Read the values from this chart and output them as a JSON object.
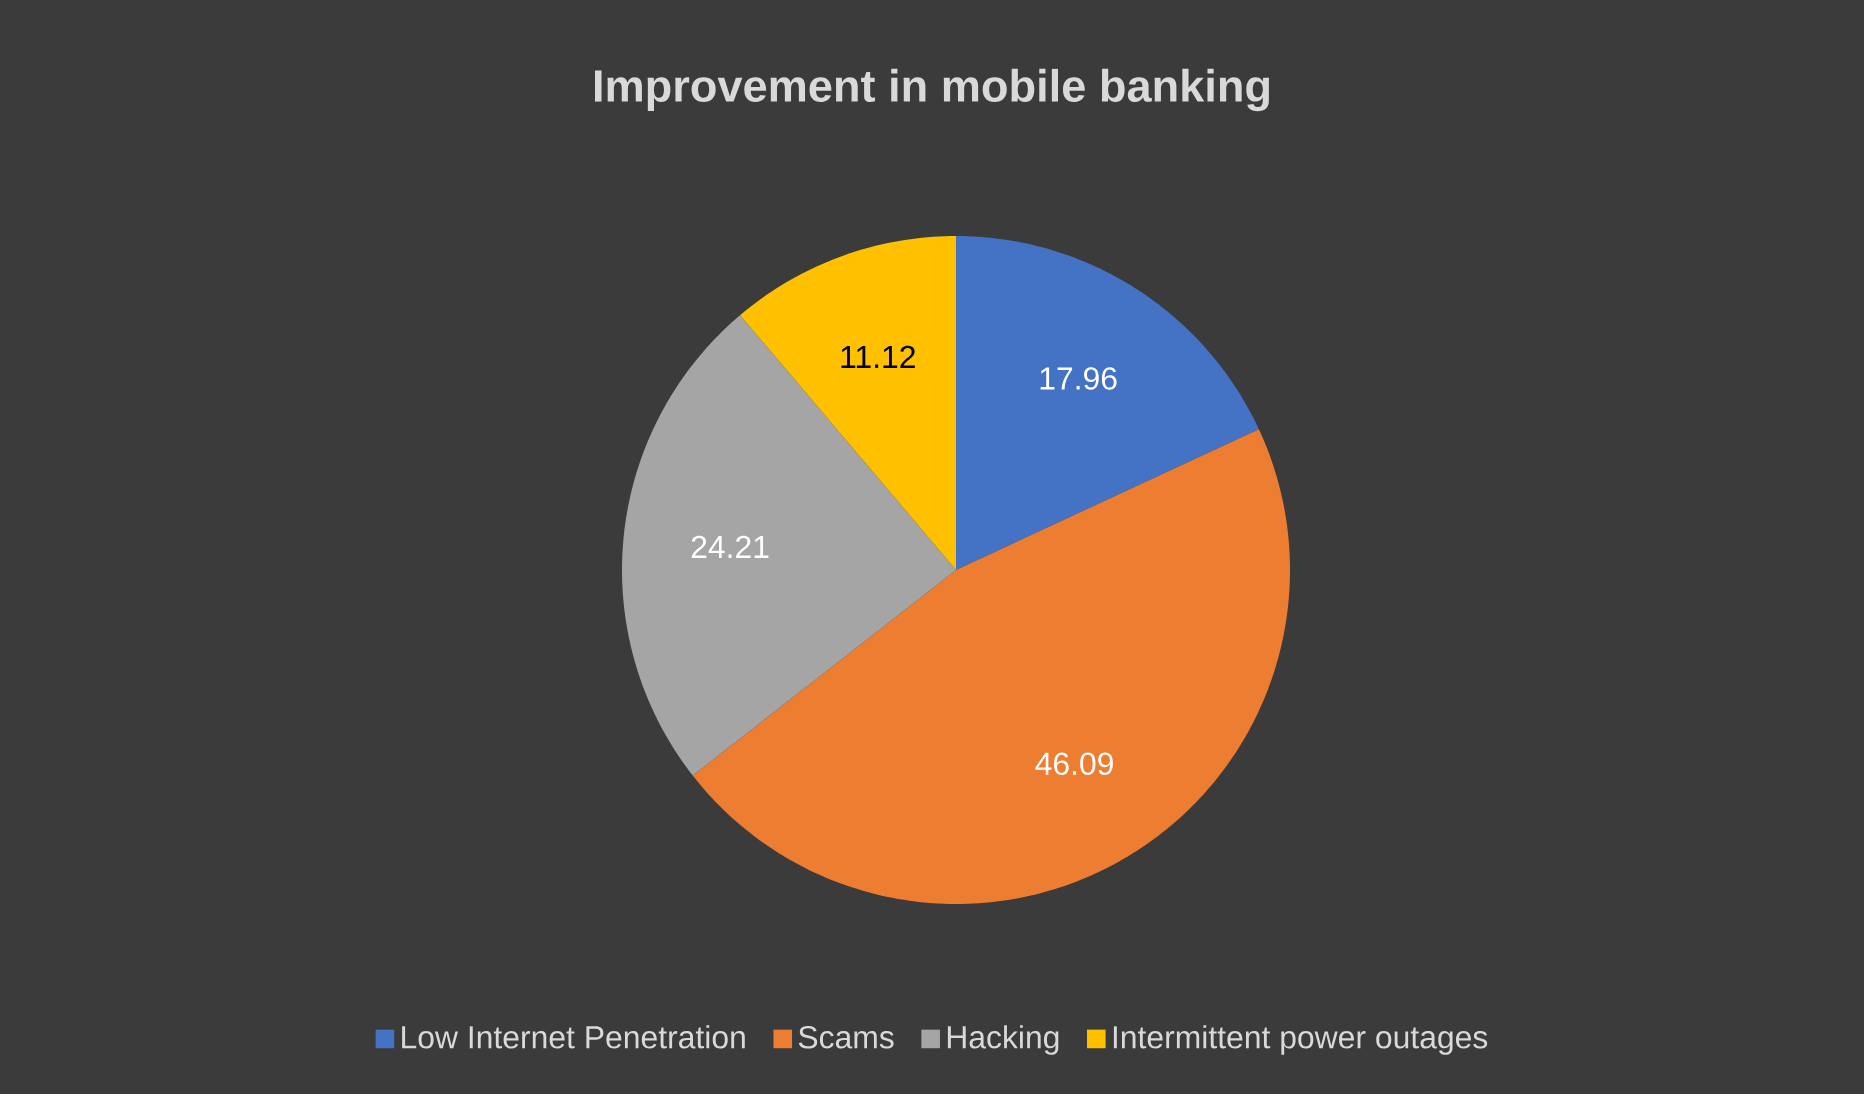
{
  "chart_data": {
    "type": "pie",
    "title": "Improvement in mobile banking",
    "categories": [
      "Low Internet Penetration",
      "Scams",
      "Hacking",
      "Intermittent power outages"
    ],
    "values": [
      17.96,
      46.09,
      24.21,
      11.12
    ],
    "colors": [
      "#4472c4",
      "#ed7d31",
      "#a5a5a5",
      "#ffc000"
    ],
    "data_labels": true,
    "legend": "bottom"
  }
}
